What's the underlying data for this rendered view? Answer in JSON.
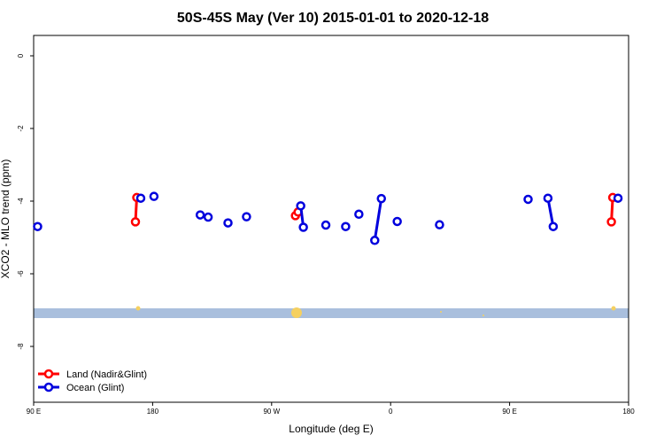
{
  "chart_data": {
    "type": "line",
    "title": "50S-45S May (Ver 10)   2015-01-01 to 2020-12-18",
    "xlabel": "Longitude (deg E)",
    "ylabel": "XCO2 - MLO trend (ppm)",
    "xlim": [
      90,
      540
    ],
    "ylim": [
      -9.5,
      0.6
    ],
    "x_ticks": [
      {
        "value": 90,
        "label": "90 E"
      },
      {
        "value": 180,
        "label": "180"
      },
      {
        "value": 270,
        "label": "90 W"
      },
      {
        "value": 360,
        "label": "0"
      },
      {
        "value": 450,
        "label": "90 E"
      },
      {
        "value": 540,
        "label": "180"
      }
    ],
    "y_ticks": [
      0,
      -2,
      -4,
      -6,
      -8
    ],
    "grid": false,
    "legend_position": "bottom-left",
    "colors": {
      "land": "#ff0000",
      "ocean": "#0000dd",
      "band": "#a9bfdd",
      "land_mark": "#f5d060"
    },
    "series": [
      {
        "name": "Land (Nadir&Glint)",
        "color": "#ff0000",
        "segments": [
          [
            [
              167,
              -4.57
            ],
            [
              168,
              -3.9
            ]
          ],
          [
            [
              288,
              -4.4
            ],
            [
              290,
              -4.3
            ]
          ],
          [
            [
              527,
              -4.57
            ],
            [
              528,
              -3.9
            ]
          ]
        ]
      },
      {
        "name": "Ocean (Glint)",
        "color": "#0000dd",
        "segments": [
          [
            [
              93,
              -4.7
            ]
          ],
          [
            [
              171,
              -3.92
            ]
          ],
          [
            [
              181,
              -3.87
            ]
          ],
          [
            [
              216,
              -4.38
            ]
          ],
          [
            [
              222,
              -4.44
            ]
          ],
          [
            [
              237,
              -4.6
            ]
          ],
          [
            [
              251,
              -4.43
            ]
          ],
          [
            [
              292,
              -4.13
            ],
            [
              294,
              -4.72
            ]
          ],
          [
            [
              311,
              -4.66
            ]
          ],
          [
            [
              326,
              -4.7
            ]
          ],
          [
            [
              336,
              -4.36
            ]
          ],
          [
            [
              348,
              -5.08
            ],
            [
              353,
              -3.93
            ]
          ],
          [
            [
              365,
              -4.56
            ]
          ],
          [
            [
              397,
              -4.65
            ]
          ],
          [
            [
              464,
              -3.95
            ]
          ],
          [
            [
              479,
              -3.92
            ],
            [
              483,
              -4.7
            ]
          ],
          [
            [
              532,
              -3.92
            ]
          ]
        ]
      }
    ]
  }
}
